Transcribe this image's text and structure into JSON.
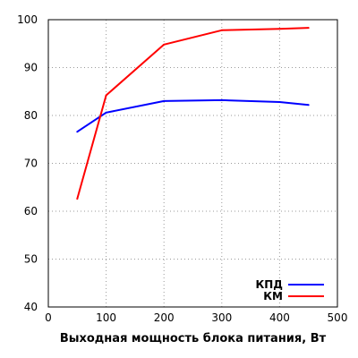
{
  "chart_data": {
    "type": "line",
    "xlabel": "Выходная мощность блока питания, Вт",
    "ylabel": "",
    "xlim": [
      0,
      500
    ],
    "ylim": [
      40,
      100
    ],
    "x_ticks": [
      "0",
      "100",
      "200",
      "300",
      "400",
      "500"
    ],
    "y_ticks": [
      "40",
      "50",
      "60",
      "70",
      "80",
      "90",
      "100"
    ],
    "grid": "dotted",
    "legend_position": "bottom-right",
    "series": [
      {
        "name": "КПД",
        "color": "#0000ff",
        "x": [
          50,
          100,
          200,
          300,
          400,
          450
        ],
        "values": [
          76.6,
          80.6,
          83.0,
          83.2,
          82.8,
          82.2
        ]
      },
      {
        "name": "КМ",
        "color": "#ff0000",
        "x": [
          50,
          100,
          200,
          300,
          400,
          450
        ],
        "values": [
          62.6,
          84.2,
          94.8,
          97.8,
          98.1,
          98.3
        ]
      }
    ]
  }
}
